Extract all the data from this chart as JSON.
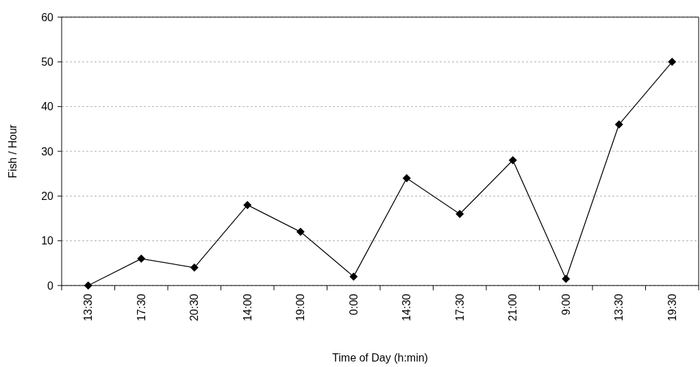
{
  "chart_data": {
    "type": "line",
    "xlabel": "Time of Day (h:min)",
    "ylabel": "Fish / Hour",
    "categories": [
      "13:30",
      "17:30",
      "20:30",
      "14:00",
      "19:00",
      "0:00",
      "14:30",
      "17:30",
      "21:00",
      "9:00",
      "13:30",
      "19:30"
    ],
    "series": [
      {
        "color": "#000000",
        "values": [
          0,
          6,
          4,
          18,
          12,
          2,
          24,
          16,
          28,
          1.5,
          36,
          50
        ]
      }
    ],
    "ylim": [
      0,
      60
    ],
    "yticks": [
      0,
      10,
      20,
      30,
      40,
      50,
      60
    ],
    "grid": "y",
    "marker": "diamond",
    "line_style": "solid"
  }
}
